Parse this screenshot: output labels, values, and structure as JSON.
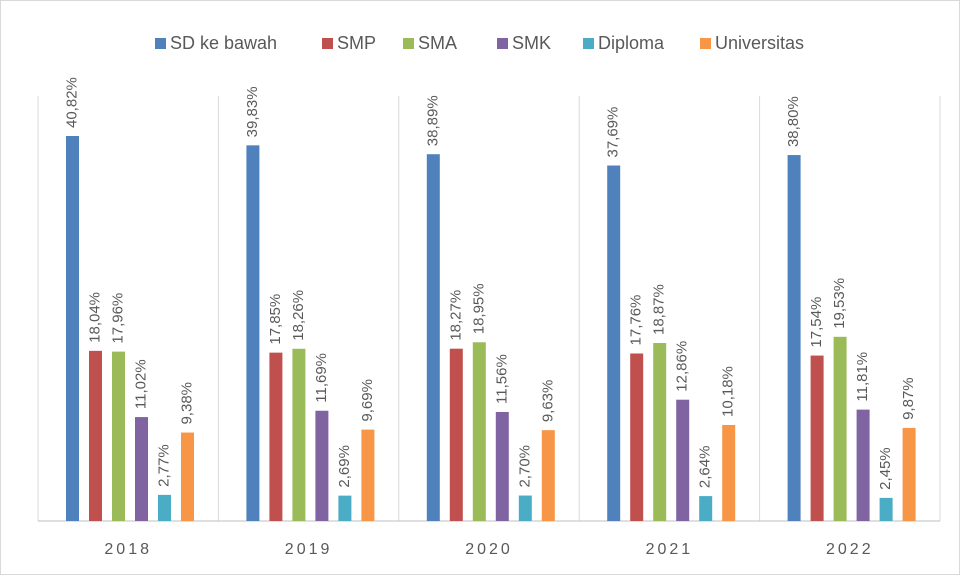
{
  "chart_data": {
    "type": "bar",
    "categories": [
      "2018",
      "2019",
      "2020",
      "2021",
      "2022"
    ],
    "series": [
      {
        "name": "SD ke bawah",
        "color": "#4f81bd",
        "values": [
          40.82,
          39.83,
          38.89,
          37.69,
          38.8
        ],
        "value_labels": [
          "40,82%",
          "39,83%",
          "38,89%",
          "37,69%",
          "38,80%"
        ]
      },
      {
        "name": "SMP",
        "color": "#c0504d",
        "values": [
          18.04,
          17.85,
          18.27,
          17.76,
          17.54
        ],
        "value_labels": [
          "18,04%",
          "17,85%",
          "18,27%",
          "17,76%",
          "17,54%"
        ]
      },
      {
        "name": "SMA",
        "color": "#9bbb59",
        "values": [
          17.96,
          18.26,
          18.95,
          18.87,
          19.53
        ],
        "value_labels": [
          "17,96%",
          "18,26%",
          "18,95%",
          "18,87%",
          "19,53%"
        ]
      },
      {
        "name": "SMK",
        "color": "#8064a2",
        "values": [
          11.02,
          11.69,
          11.56,
          12.86,
          11.81
        ],
        "value_labels": [
          "11,02%",
          "11,69%",
          "11,56%",
          "12,86%",
          "11,81%"
        ]
      },
      {
        "name": "Diploma",
        "color": "#4bacc6",
        "values": [
          2.77,
          2.69,
          2.7,
          2.64,
          2.45
        ],
        "value_labels": [
          "2,77%",
          "2,69%",
          "2,70%",
          "2,64%",
          "2,45%"
        ]
      },
      {
        "name": "Universitas",
        "color": "#f79646",
        "values": [
          9.38,
          9.69,
          9.63,
          10.18,
          9.87
        ],
        "value_labels": [
          "9,38%",
          "9,69%",
          "9,63%",
          "10,18%",
          "9,87%"
        ]
      }
    ],
    "legend": "top"
  }
}
